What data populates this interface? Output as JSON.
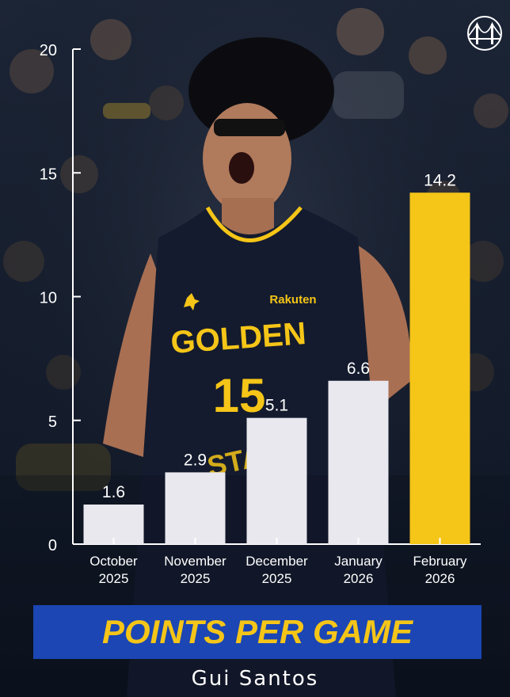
{
  "title": "POINTS PER GAME",
  "player_name": "Gui Santos",
  "jersey": {
    "wordmark": "GOLDEN",
    "number": "15",
    "sponsor": "Rakuten",
    "lower_wordmark": "STATE"
  },
  "logo_icon": "golden-gate-bridge-icon",
  "colors": {
    "accent_yellow": "#f5c518",
    "bar_white": "#e8e8ee",
    "banner_blue": "#1b46b3",
    "jersey_navy": "#141b2e"
  },
  "chart_data": {
    "type": "bar",
    "categories": [
      [
        "October",
        "2025"
      ],
      [
        "November",
        "2025"
      ],
      [
        "December",
        "2025"
      ],
      [
        "January",
        "2026"
      ],
      [
        "February",
        "2026"
      ]
    ],
    "values": [
      1.6,
      2.9,
      5.1,
      6.6,
      14.2
    ],
    "value_labels": [
      "1.6",
      "2.9",
      "5.1",
      "6.6",
      "14.2"
    ],
    "highlight_index": 4,
    "ylim": [
      0,
      20
    ],
    "yticks": [
      0,
      5,
      10,
      15,
      20
    ],
    "grid": false,
    "title": "POINTS PER GAME",
    "xlabel": "",
    "ylabel": ""
  }
}
